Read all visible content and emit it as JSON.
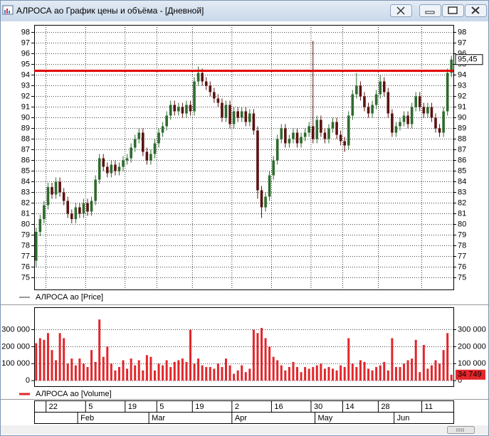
{
  "window": {
    "title": "АЛРОСА ао График цены и объёма - [Дневной]"
  },
  "chart_data": [
    {
      "type": "candlestick",
      "name": "АЛРОСА ао [Price]",
      "legend_color": "#333333",
      "up_color": "#2e6b2e",
      "down_color": "#5c1212",
      "grid": true,
      "ylim": [
        73.9,
        98.7
      ],
      "yticks": [
        75,
        76,
        77,
        78,
        79,
        80,
        81,
        82,
        83,
        84,
        85,
        86,
        87,
        88,
        89,
        90,
        91,
        92,
        93,
        94,
        95,
        96,
        97,
        98
      ],
      "hline": {
        "value": 94.4,
        "color": "#e00000"
      },
      "open": [
        76.6,
        79.3,
        80.5,
        81.8,
        83.5,
        82.8,
        84.0,
        83.0,
        82.2,
        81.0,
        80.5,
        81.6,
        81.0,
        82.0,
        81.2,
        82.2,
        84.2,
        86.2,
        85.4,
        84.8,
        85.6,
        85.0,
        85.4,
        86.0,
        86.2,
        87.2,
        88.0,
        88.6,
        86.8,
        86.0,
        86.6,
        87.6,
        88.6,
        89.2,
        90.2,
        91.2,
        90.6,
        91.0,
        90.4,
        91.2,
        90.6,
        93.4,
        94.2,
        93.4,
        93.0,
        92.4,
        91.8,
        91.4,
        90.0,
        91.2,
        89.4,
        90.6,
        90.0,
        90.6,
        89.6,
        90.4,
        88.8,
        83.2,
        81.6,
        82.6,
        84.6,
        86.0,
        88.0,
        89.0,
        87.6,
        88.0,
        88.6,
        87.6,
        88.2,
        88.6,
        89.2,
        88.0,
        89.8,
        88.6,
        88.0,
        89.0,
        89.6,
        88.4,
        87.8,
        87.4,
        90.2,
        92.2,
        93.0,
        92.0,
        91.0,
        90.4,
        91.2,
        92.2,
        93.4,
        92.4,
        90.4,
        88.6,
        89.2,
        89.6,
        90.2,
        89.4,
        91.0,
        92.0,
        91.0,
        90.4,
        91.0,
        90.0,
        89.0,
        88.6,
        90.6,
        94.2
      ],
      "high": [
        79.7,
        80.9,
        82.2,
        83.9,
        83.9,
        84.4,
        84.4,
        83.4,
        82.6,
        81.4,
        82.0,
        82.0,
        82.4,
        82.4,
        82.6,
        84.6,
        86.6,
        86.6,
        85.8,
        86.0,
        86.0,
        85.8,
        86.4,
        86.6,
        87.6,
        88.4,
        89.0,
        89.0,
        87.2,
        87.0,
        88.0,
        89.0,
        89.6,
        90.6,
        91.6,
        91.6,
        91.4,
        91.4,
        91.6,
        91.6,
        93.8,
        94.8,
        94.6,
        93.8,
        93.4,
        92.8,
        92.2,
        91.8,
        91.6,
        91.6,
        91.0,
        91.0,
        91.0,
        91.0,
        90.8,
        90.8,
        89.2,
        83.6,
        83.0,
        85.0,
        86.4,
        88.4,
        89.4,
        89.4,
        88.4,
        89.0,
        89.0,
        88.6,
        89.0,
        89.6,
        97.2,
        90.2,
        90.2,
        89.0,
        89.4,
        90.0,
        90.0,
        88.8,
        88.2,
        90.6,
        92.6,
        94.2,
        93.4,
        92.4,
        91.4,
        91.6,
        92.6,
        94.0,
        93.8,
        92.8,
        90.8,
        89.6,
        90.0,
        90.6,
        90.6,
        91.4,
        92.4,
        92.4,
        91.4,
        91.4,
        91.4,
        90.4,
        89.4,
        91.0,
        94.6,
        95.8
      ],
      "low": [
        76.0,
        78.9,
        80.1,
        81.4,
        82.4,
        82.4,
        82.6,
        81.8,
        80.6,
        80.1,
        80.1,
        80.6,
        80.6,
        80.8,
        80.8,
        81.8,
        83.8,
        85.0,
        84.4,
        84.4,
        84.6,
        84.6,
        85.0,
        85.6,
        85.8,
        86.8,
        87.6,
        86.4,
        85.6,
        85.6,
        86.2,
        87.2,
        88.2,
        88.8,
        89.8,
        90.2,
        90.2,
        90.0,
        90.0,
        90.2,
        90.2,
        93.0,
        93.0,
        92.6,
        92.0,
        91.4,
        91.0,
        89.6,
        89.6,
        89.0,
        89.0,
        89.6,
        89.6,
        89.2,
        89.2,
        88.4,
        82.4,
        80.6,
        81.2,
        82.2,
        84.2,
        85.6,
        87.6,
        87.2,
        87.2,
        87.6,
        87.2,
        87.2,
        87.8,
        88.2,
        87.6,
        87.6,
        88.2,
        87.6,
        87.6,
        88.6,
        88.0,
        87.4,
        86.8,
        87.0,
        89.8,
        91.8,
        91.6,
        90.6,
        90.0,
        90.0,
        90.8,
        91.8,
        92.0,
        90.0,
        88.2,
        88.2,
        88.8,
        89.2,
        89.0,
        89.0,
        90.6,
        90.6,
        90.0,
        90.0,
        89.6,
        88.6,
        88.2,
        88.2,
        90.2,
        93.8
      ],
      "close": [
        79.3,
        80.5,
        81.8,
        83.5,
        82.8,
        84.0,
        83.0,
        82.2,
        81.0,
        80.5,
        81.6,
        81.0,
        82.0,
        81.2,
        82.2,
        84.2,
        86.2,
        85.4,
        84.8,
        85.6,
        85.0,
        85.4,
        86.0,
        86.2,
        87.2,
        88.0,
        88.6,
        86.8,
        86.0,
        86.6,
        87.6,
        88.6,
        89.2,
        90.2,
        91.2,
        90.6,
        91.0,
        90.4,
        91.2,
        90.6,
        93.4,
        94.2,
        93.4,
        93.0,
        92.4,
        91.8,
        91.4,
        90.0,
        91.2,
        89.4,
        90.6,
        90.0,
        90.6,
        89.6,
        90.4,
        88.8,
        83.2,
        81.6,
        82.6,
        84.6,
        86.0,
        88.0,
        89.0,
        87.6,
        88.0,
        88.6,
        87.6,
        88.2,
        88.6,
        89.2,
        88.0,
        89.8,
        88.6,
        88.0,
        89.0,
        89.6,
        88.4,
        87.8,
        87.4,
        90.2,
        92.2,
        93.0,
        92.0,
        91.0,
        90.4,
        91.2,
        92.2,
        93.4,
        92.4,
        90.4,
        88.6,
        89.2,
        89.6,
        90.2,
        89.4,
        91.0,
        92.0,
        91.0,
        90.4,
        91.0,
        90.0,
        89.0,
        88.6,
        90.6,
        94.2,
        95.45
      ],
      "close_labels": [
        null,
        null,
        null,
        null,
        null,
        null,
        null,
        null,
        null,
        null,
        null,
        null,
        null,
        null,
        null,
        null,
        null,
        null,
        null,
        null,
        null,
        null,
        null,
        null,
        null,
        null,
        null,
        null,
        null,
        null,
        null,
        null,
        null,
        null,
        null,
        null,
        null,
        null,
        null,
        null,
        null,
        null,
        null,
        null,
        null,
        null,
        null,
        null,
        null,
        null,
        null,
        null,
        null,
        null,
        null,
        null,
        null,
        null,
        null,
        null,
        null,
        null,
        null,
        null,
        null,
        null,
        null,
        null,
        null,
        null,
        null,
        null,
        null,
        null,
        null,
        null,
        null,
        null,
        null,
        null,
        null,
        null,
        null,
        null,
        null,
        null,
        null,
        null,
        null,
        null,
        null,
        null,
        null,
        null,
        null,
        null,
        null,
        null,
        null,
        null,
        null,
        null,
        null,
        null,
        null,
        "95,45"
      ]
    },
    {
      "type": "bar",
      "name": "АЛРОСА ао [Volume]",
      "color": "#e3262b",
      "ylim": [
        -33000,
        432000
      ],
      "yticks": [
        0,
        {
          "value": 100000,
          "label": "100 000"
        },
        {
          "value": 200000,
          "label": "200 000"
        },
        {
          "value": 300000,
          "label": "300 000"
        }
      ],
      "grid": true,
      "categories": [
        null,
        null,
        null,
        "22",
        null,
        null,
        null,
        null,
        null,
        null,
        null,
        null,
        null,
        "5",
        null,
        null,
        null,
        null,
        null,
        null,
        null,
        null,
        null,
        "19",
        null,
        null,
        null,
        null,
        null,
        null,
        null,
        "5",
        null,
        null,
        null,
        null,
        null,
        null,
        null,
        null,
        "19",
        null,
        null,
        null,
        null,
        null,
        null,
        null,
        null,
        null,
        "2",
        null,
        null,
        null,
        null,
        null,
        null,
        null,
        null,
        null,
        "16",
        null,
        null,
        null,
        null,
        null,
        null,
        null,
        null,
        null,
        "30",
        null,
        null,
        null,
        null,
        null,
        null,
        null,
        "14",
        null,
        null,
        null,
        null,
        null,
        null,
        null,
        null,
        "28",
        null,
        null,
        null,
        null,
        null,
        null,
        null,
        null,
        null,
        null,
        "11",
        null,
        null,
        null,
        null,
        null,
        null,
        null
      ],
      "months": [
        null,
        null,
        null,
        null,
        null,
        null,
        null,
        null,
        null,
        null,
        null,
        "Feb",
        null,
        null,
        null,
        null,
        null,
        null,
        null,
        null,
        null,
        null,
        null,
        null,
        null,
        null,
        null,
        null,
        null,
        "Mar",
        null,
        null,
        null,
        null,
        null,
        null,
        null,
        null,
        null,
        null,
        null,
        null,
        null,
        null,
        null,
        null,
        null,
        null,
        null,
        null,
        "Apr",
        null,
        null,
        null,
        null,
        null,
        null,
        null,
        null,
        null,
        null,
        null,
        null,
        null,
        null,
        null,
        null,
        null,
        null,
        null,
        null,
        "May",
        null,
        null,
        null,
        null,
        null,
        null,
        null,
        null,
        null,
        null,
        null,
        null,
        null,
        null,
        null,
        null,
        null,
        null,
        null,
        "Jun",
        null,
        null,
        null,
        null,
        null,
        null,
        null,
        null,
        null,
        null,
        null,
        null,
        null,
        null
      ],
      "values": [
        220000,
        250000,
        240000,
        280000,
        180000,
        120000,
        280000,
        250000,
        100000,
        130000,
        90000,
        130000,
        100000,
        80000,
        180000,
        110000,
        360000,
        140000,
        200000,
        100000,
        60000,
        80000,
        120000,
        70000,
        130000,
        90000,
        120000,
        60000,
        150000,
        140000,
        60000,
        100000,
        90000,
        120000,
        80000,
        110000,
        120000,
        130000,
        110000,
        300000,
        100000,
        130000,
        90000,
        80000,
        80000,
        70000,
        100000,
        80000,
        130000,
        90000,
        40000,
        60000,
        90000,
        50000,
        70000,
        300000,
        280000,
        310000,
        250000,
        200000,
        140000,
        120000,
        90000,
        60000,
        80000,
        110000,
        80000,
        50000,
        80000,
        70000,
        80000,
        90000,
        100000,
        70000,
        80000,
        70000,
        60000,
        90000,
        80000,
        250000,
        100000,
        80000,
        120000,
        110000,
        70000,
        60000,
        80000,
        90000,
        110000,
        60000,
        250000,
        80000,
        80000,
        100000,
        120000,
        130000,
        240000,
        50000,
        210000,
        70000,
        90000,
        120000,
        100000,
        180000,
        280000,
        34749
      ],
      "value_labels": [
        null,
        null,
        null,
        null,
        null,
        null,
        null,
        null,
        null,
        null,
        null,
        null,
        null,
        null,
        null,
        null,
        null,
        null,
        null,
        null,
        null,
        null,
        null,
        null,
        null,
        null,
        null,
        null,
        null,
        null,
        null,
        null,
        null,
        null,
        null,
        null,
        null,
        null,
        null,
        null,
        null,
        null,
        null,
        null,
        null,
        null,
        null,
        null,
        null,
        null,
        null,
        null,
        null,
        null,
        null,
        null,
        null,
        null,
        null,
        null,
        null,
        null,
        null,
        null,
        null,
        null,
        null,
        null,
        null,
        null,
        null,
        null,
        null,
        null,
        null,
        null,
        null,
        null,
        null,
        null,
        null,
        null,
        null,
        null,
        null,
        null,
        null,
        null,
        null,
        null,
        null,
        null,
        null,
        null,
        null,
        null,
        null,
        null,
        null,
        null,
        null,
        null,
        null,
        null,
        null,
        "34 749"
      ]
    }
  ]
}
